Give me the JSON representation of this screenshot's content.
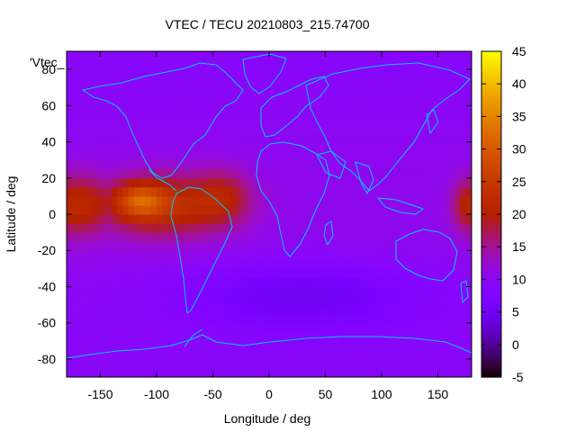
{
  "chart_data": {
    "type": "heatmap",
    "title": "VTEC / TECU 20210803_215.74700",
    "xlabel": "Longitude / deg",
    "ylabel": "Latitude / deg",
    "key_label": "'Vtec_",
    "xlim": [
      -180,
      180
    ],
    "ylim": [
      -90,
      90
    ],
    "x_ticks": [
      -150,
      -100,
      -50,
      0,
      50,
      100,
      150
    ],
    "y_ticks": [
      -80,
      -60,
      -40,
      -20,
      0,
      20,
      40,
      60,
      80
    ],
    "colorbar": {
      "range": [
        -5,
        45
      ],
      "ticks": [
        -5,
        0,
        5,
        10,
        15,
        20,
        25,
        30,
        35,
        40,
        45
      ],
      "palette": "gnuplot-pm3d-black-blue-red-yellow"
    },
    "field_features": [
      {
        "feature": "equatorial-anomaly-peak",
        "lon": -115,
        "lat": 8,
        "vtec": 38
      },
      {
        "feature": "equatorial-band-mid",
        "lon": -95,
        "lat": 0,
        "vtec": 27
      },
      {
        "feature": "western-band-edge",
        "lon": -170,
        "lat": 5,
        "vtec": 22
      },
      {
        "feature": "eastern-band-edge",
        "lon": -40,
        "lat": 10,
        "vtec": 20
      },
      {
        "feature": "date-line-band",
        "lon": 178,
        "lat": 5,
        "vtec": 20
      },
      {
        "feature": "mid-latitude-background",
        "lon": 0,
        "lat": 45,
        "vtec": 9
      },
      {
        "feature": "southern-minimum",
        "lon": 30,
        "lat": -45,
        "vtec": 4
      },
      {
        "feature": "polar-south",
        "lon": 0,
        "lat": -85,
        "vtec": 6
      }
    ]
  }
}
